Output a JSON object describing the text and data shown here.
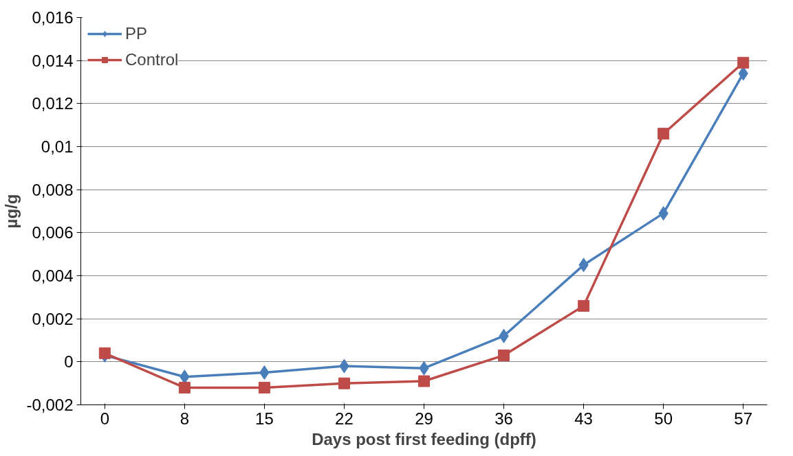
{
  "chart_data": {
    "type": "line",
    "xlabel": "Days post first feeding (dpff)",
    "ylabel": "µg/g",
    "categories": [
      "0",
      "8",
      "15",
      "22",
      "29",
      "36",
      "43",
      "50",
      "57"
    ],
    "series": [
      {
        "name": "PP",
        "color": "#4a7ebb",
        "marker": "diamond",
        "values": [
          0.0003,
          -0.0007,
          -0.0005,
          -0.0002,
          -0.0003,
          0.0012,
          0.0045,
          0.0069,
          0.0134
        ]
      },
      {
        "name": "Control",
        "color": "#be4b48",
        "marker": "square",
        "values": [
          0.0004,
          -0.0012,
          -0.0012,
          -0.001,
          -0.0009,
          0.0003,
          0.0026,
          0.0106,
          0.0139
        ]
      }
    ],
    "ylim": [
      -0.002,
      0.016
    ],
    "yticks": [
      {
        "value": -0.002,
        "label": "-0,002"
      },
      {
        "value": 0,
        "label": "0"
      },
      {
        "value": 0.002,
        "label": "0,002"
      },
      {
        "value": 0.004,
        "label": "0,004"
      },
      {
        "value": 0.006,
        "label": "0,006"
      },
      {
        "value": 0.008,
        "label": "0,008"
      },
      {
        "value": 0.01,
        "label": "0,01"
      },
      {
        "value": 0.012,
        "label": "0,012"
      },
      {
        "value": 0.014,
        "label": "0,014"
      },
      {
        "value": 0.016,
        "label": "0,016"
      }
    ],
    "grid": "y",
    "legend": "top left",
    "line_style": "solid"
  }
}
